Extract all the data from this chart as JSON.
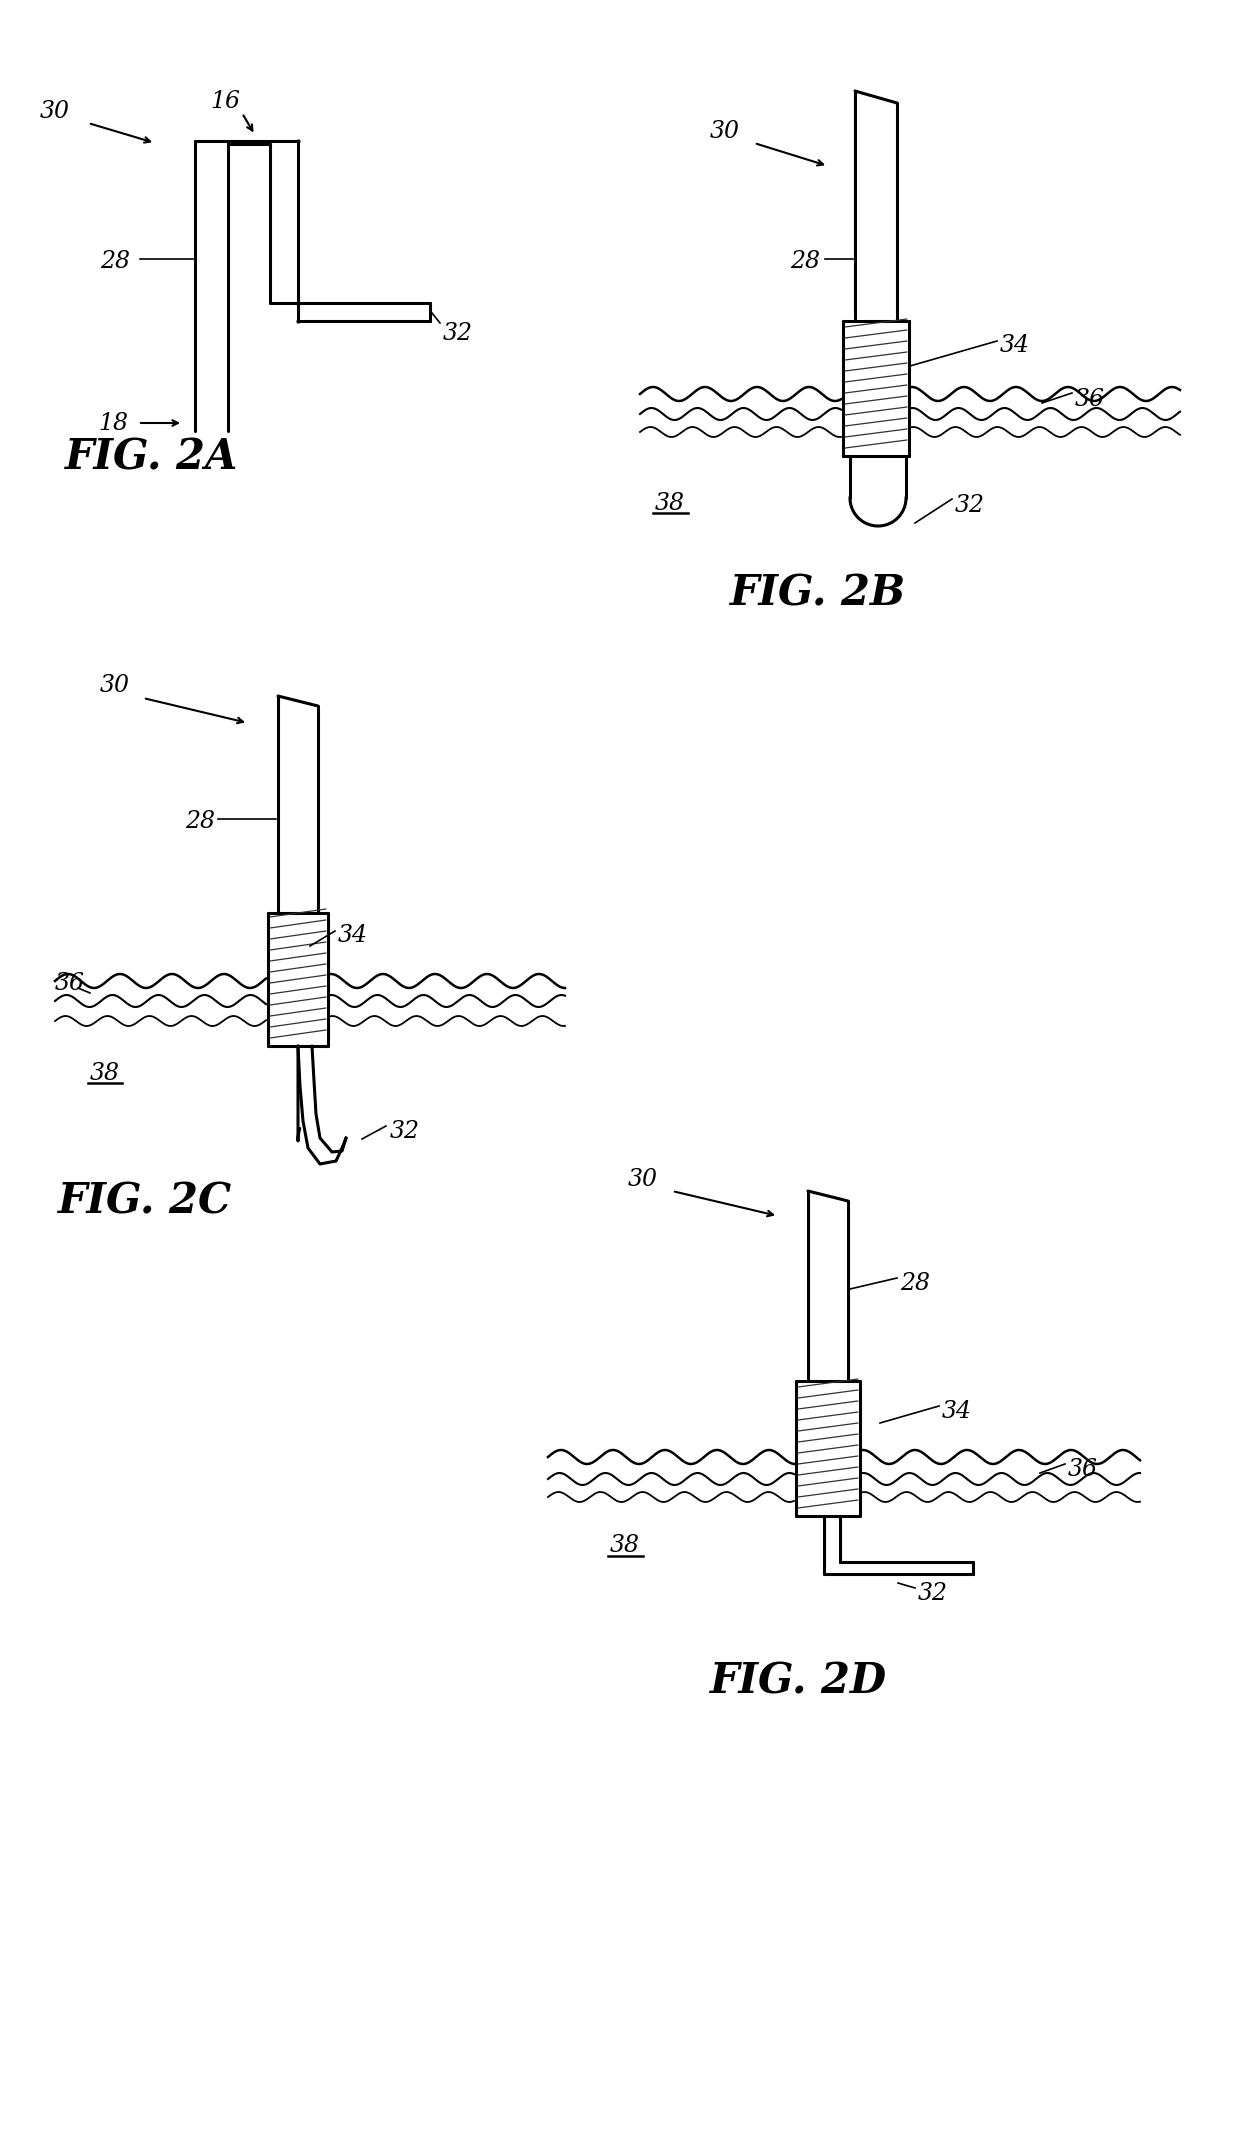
{
  "bg_color": "#ffffff",
  "line_color": "#000000",
  "fig_width": 12.49,
  "fig_height": 21.41,
  "fig2a_label": "FIG. 2A",
  "fig2b_label": "FIG. 2B",
  "fig2c_label": "FIG. 2C",
  "fig2d_label": "FIG. 2D"
}
